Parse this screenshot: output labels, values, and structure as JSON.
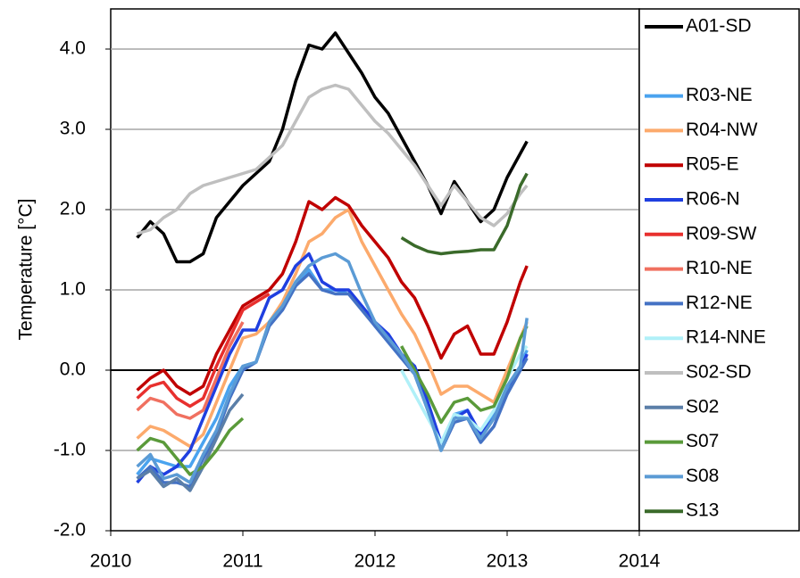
{
  "chart_data": {
    "type": "line",
    "y_label": "Temperature [°C]",
    "xlim": [
      2010,
      2014
    ],
    "xticks": [
      2010,
      2011,
      2012,
      2013,
      2014
    ],
    "ylim": [
      -2,
      4.5
    ],
    "yticks": [
      {
        "value": -2,
        "label": "-2.0"
      },
      {
        "value": -1,
        "label": "-1.0"
      },
      {
        "value": 0,
        "label": "0.0"
      },
      {
        "value": 1,
        "label": "1.0"
      },
      {
        "value": 2,
        "label": "2.0"
      },
      {
        "value": 3,
        "label": "3.0"
      },
      {
        "value": 4,
        "label": "4.0"
      }
    ],
    "grid": true,
    "x": [
      2010.2,
      2010.3,
      2010.4,
      2010.5,
      2010.6,
      2010.7,
      2010.8,
      2010.9,
      2011.0,
      2011.1,
      2011.2,
      2011.3,
      2011.4,
      2011.5,
      2011.6,
      2011.7,
      2011.8,
      2011.9,
      2012.0,
      2012.1,
      2012.2,
      2012.3,
      2012.4,
      2012.5,
      2012.6,
      2012.7,
      2012.8,
      2012.9,
      2013.0,
      2013.1,
      2013.15
    ],
    "series": [
      {
        "name": "A01-SD",
        "color": "#000000",
        "values": [
          1.65,
          1.85,
          1.7,
          1.35,
          1.35,
          1.45,
          1.9,
          2.1,
          2.3,
          2.45,
          2.6,
          3.0,
          3.6,
          4.05,
          4.0,
          4.2,
          3.95,
          3.7,
          3.4,
          3.2,
          2.9,
          2.6,
          2.3,
          1.95,
          2.35,
          2.1,
          1.85,
          2.0,
          2.4,
          2.7,
          2.85
        ]
      },
      {
        "name": "R03-NE",
        "color": "#4aa3ef",
        "values": [
          -1.3,
          -1.1,
          -1.15,
          -1.2,
          -1.2,
          -0.9,
          -0.6,
          -0.2,
          0.05,
          0.1,
          0.6,
          0.75,
          1.05,
          1.25,
          1.0,
          1.0,
          0.95,
          0.8,
          0.55,
          0.35,
          0.15,
          0.0,
          -0.45,
          -1.0,
          -0.55,
          -0.5,
          -0.85,
          -0.55,
          -0.25,
          0.05,
          0.25
        ]
      },
      {
        "name": "R04-NW",
        "color": "#fcaa6c",
        "values": [
          -0.85,
          -0.7,
          -0.75,
          -0.85,
          -0.95,
          -0.8,
          -0.4,
          0.0,
          0.4,
          0.45,
          0.6,
          0.85,
          1.2,
          1.6,
          1.7,
          1.9,
          2.0,
          1.6,
          1.3,
          1.0,
          0.7,
          0.45,
          0.1,
          -0.3,
          -0.2,
          -0.2,
          -0.3,
          -0.4,
          0.0,
          0.4,
          0.6
        ]
      },
      {
        "name": "R05-E",
        "color": "#c00000",
        "values": [
          -0.25,
          -0.1,
          0.0,
          -0.2,
          -0.3,
          -0.2,
          0.2,
          0.5,
          0.8,
          0.9,
          1.0,
          1.2,
          1.6,
          2.1,
          2.0,
          2.15,
          2.05,
          1.8,
          1.6,
          1.4,
          1.1,
          0.9,
          0.55,
          0.15,
          0.45,
          0.55,
          0.2,
          0.2,
          0.6,
          1.1,
          1.3
        ]
      },
      {
        "name": "R06-N",
        "color": "#1f3fe0",
        "values": [
          -1.4,
          -1.2,
          -1.3,
          -1.2,
          -1.0,
          -0.6,
          -0.2,
          0.2,
          0.5,
          0.5,
          0.9,
          1.0,
          1.3,
          1.45,
          1.1,
          1.0,
          1.0,
          0.8,
          0.6,
          0.45,
          0.2,
          0.05,
          -0.4,
          -0.9,
          -0.6,
          -0.5,
          -0.8,
          -0.6,
          -0.2,
          0.0,
          0.2
        ]
      },
      {
        "name": "R09-SW",
        "color": "#e8302e",
        "values": [
          -0.35,
          -0.2,
          -0.15,
          -0.35,
          -0.45,
          -0.35,
          0.05,
          0.4,
          0.75,
          0.85,
          0.95,
          null,
          null,
          null,
          null,
          null,
          null,
          null,
          null,
          null,
          null,
          null,
          null,
          null,
          null,
          null,
          null,
          null,
          null,
          null,
          null
        ]
      },
      {
        "name": "R10-NE",
        "color": "#f07060",
        "values": [
          -0.5,
          -0.35,
          -0.4,
          -0.55,
          -0.6,
          -0.5,
          -0.1,
          0.3,
          0.6,
          null,
          null,
          null,
          null,
          null,
          null,
          null,
          null,
          null,
          null,
          null,
          null,
          null,
          null,
          null,
          null,
          null,
          null,
          null,
          null,
          null,
          null
        ]
      },
      {
        "name": "R12-NE",
        "color": "#4472c4",
        "values": [
          -1.35,
          -1.2,
          -1.4,
          -1.4,
          -1.45,
          -1.1,
          -0.8,
          -0.35,
          0.0,
          0.1,
          0.55,
          0.75,
          1.05,
          1.2,
          1.0,
          0.95,
          0.95,
          0.75,
          0.55,
          0.35,
          0.15,
          -0.05,
          -0.5,
          -1.0,
          -0.65,
          -0.6,
          -0.9,
          -0.7,
          -0.3,
          0.0,
          0.15
        ]
      },
      {
        "name": "R14-NNE",
        "color": "#b0f0f8",
        "values": [
          null,
          null,
          null,
          null,
          null,
          null,
          null,
          null,
          null,
          null,
          null,
          null,
          null,
          null,
          null,
          null,
          null,
          null,
          null,
          null,
          0.0,
          -0.3,
          -0.6,
          -0.9,
          -0.55,
          -0.6,
          -0.75,
          -0.5,
          -0.1,
          0.2,
          0.3
        ]
      },
      {
        "name": "S02-SD",
        "color": "#bfbfbf",
        "values": [
          1.7,
          1.75,
          1.9,
          2.0,
          2.2,
          2.3,
          2.35,
          2.4,
          2.45,
          2.5,
          2.65,
          2.8,
          3.1,
          3.4,
          3.5,
          3.55,
          3.5,
          3.3,
          3.1,
          2.95,
          2.75,
          2.55,
          2.3,
          2.05,
          2.3,
          2.1,
          1.9,
          1.8,
          1.95,
          2.2,
          2.3
        ]
      },
      {
        "name": "S02",
        "color": "#5b7fa8",
        "values": [
          -1.35,
          -1.25,
          -1.45,
          -1.35,
          -1.5,
          -1.2,
          -0.85,
          -0.5,
          -0.3,
          null,
          null,
          null,
          null,
          null,
          null,
          null,
          null,
          null,
          null,
          null,
          null,
          null,
          null,
          null,
          null,
          null,
          null,
          null,
          null,
          null,
          null
        ]
      },
      {
        "name": "S07",
        "color": "#5a9a3a",
        "values": [
          -1.0,
          -0.85,
          -0.9,
          -1.1,
          -1.3,
          -1.2,
          -1.0,
          -0.75,
          -0.6,
          null,
          null,
          null,
          null,
          null,
          null,
          null,
          null,
          null,
          null,
          null,
          0.3,
          0.0,
          -0.3,
          -0.65,
          -0.4,
          -0.35,
          -0.5,
          -0.45,
          -0.1,
          0.4,
          0.55
        ]
      },
      {
        "name": "S08",
        "color": "#5b9bd5",
        "values": [
          -1.2,
          -1.05,
          -1.35,
          -1.3,
          -1.4,
          -1.05,
          -0.75,
          -0.3,
          0.05,
          0.1,
          0.6,
          0.8,
          1.1,
          1.3,
          1.4,
          1.45,
          1.35,
          0.95,
          0.6,
          0.4,
          0.2,
          -0.05,
          -0.5,
          -1.0,
          -0.6,
          -0.6,
          -0.85,
          -0.6,
          -0.2,
          0.05,
          0.65
        ]
      },
      {
        "name": "S13",
        "color": "#3a6a2a",
        "values": [
          null,
          null,
          null,
          null,
          null,
          null,
          null,
          null,
          null,
          null,
          null,
          null,
          null,
          null,
          null,
          null,
          null,
          null,
          null,
          null,
          1.65,
          1.55,
          1.48,
          1.45,
          1.47,
          1.48,
          1.5,
          1.5,
          1.8,
          2.3,
          2.45
        ]
      }
    ]
  }
}
